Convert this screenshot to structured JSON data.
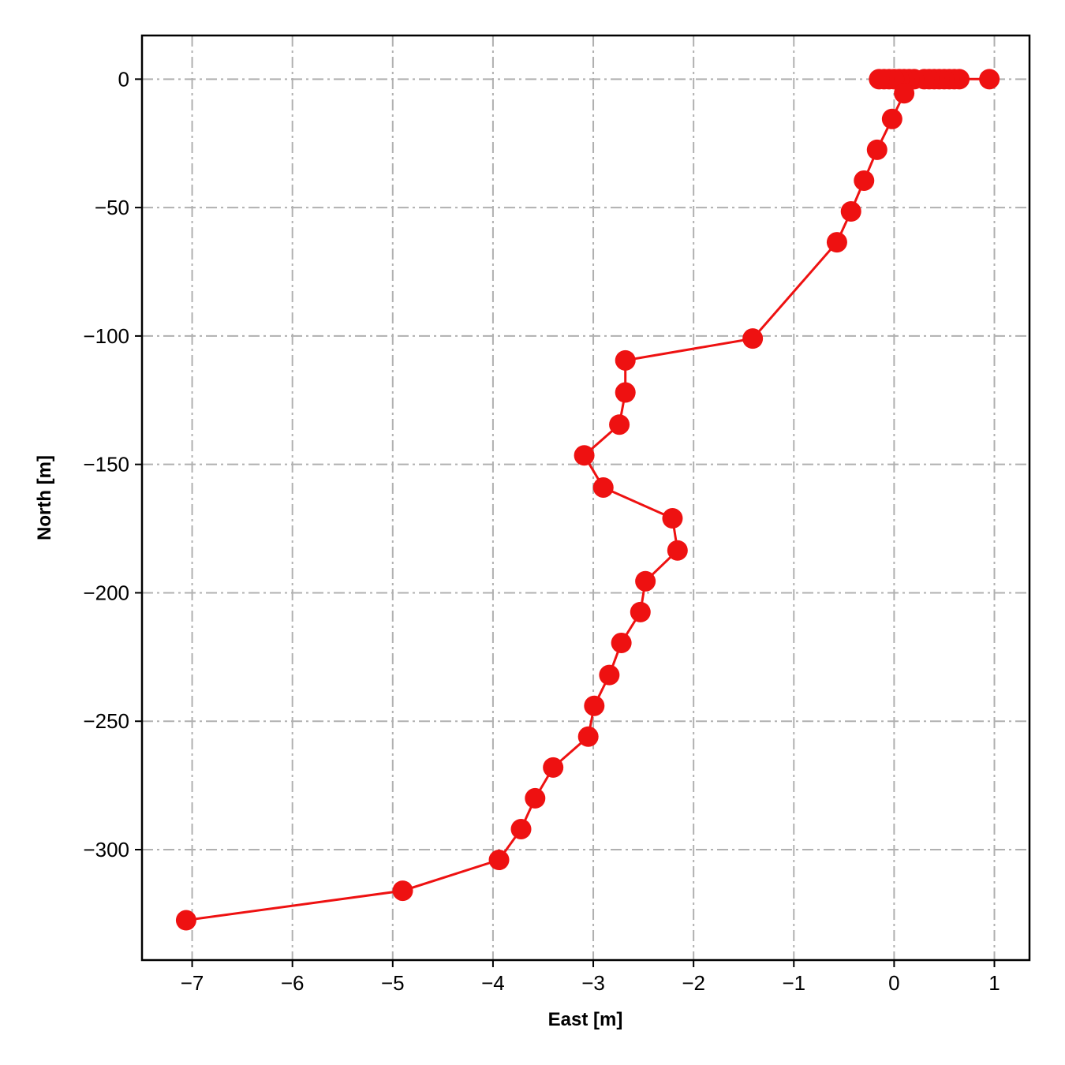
{
  "chart_data": {
    "type": "line",
    "title": "",
    "xlabel": "East [m]",
    "ylabel": "North [m]",
    "xlim": [
      -7.5,
      1.35
    ],
    "ylim": [
      -343,
      17
    ],
    "xticks": [
      -7,
      -6,
      -5,
      -4,
      -3,
      -2,
      -1,
      0,
      1
    ],
    "yticks": [
      0,
      -50,
      -100,
      -150,
      -200,
      -250,
      -300
    ],
    "grid": true,
    "color": "#ee1111",
    "series": [
      {
        "x": [
          0.95,
          0.65,
          0.6,
          0.55,
          0.5,
          0.45,
          0.4,
          0.35,
          0.3,
          0.2,
          0.15,
          0.1,
          0.05,
          0.0,
          -0.05,
          -0.1,
          -0.15,
          0.1,
          -0.02,
          -0.17,
          -0.3,
          -0.43,
          -0.57,
          -1.41,
          -2.68,
          -2.68,
          -2.74,
          -3.09,
          -2.9,
          -2.21,
          -2.16,
          -2.48,
          -2.53,
          -2.72,
          -2.84,
          -2.99,
          -3.05,
          -3.4,
          -3.58,
          -3.72,
          -3.94,
          -4.9,
          -7.06
        ],
        "y": [
          0,
          0,
          0,
          0,
          0,
          0,
          0,
          0,
          0,
          0,
          0,
          0,
          0,
          0,
          0,
          0,
          0,
          -5.5,
          -15.5,
          -27.5,
          -39.5,
          -51.5,
          -63.5,
          -101,
          -109.5,
          -122,
          -134.5,
          -146.5,
          -159,
          -171,
          -183.5,
          -195.5,
          -207.5,
          -219.5,
          -232,
          -244,
          -256,
          -268,
          -280,
          -292,
          -304,
          -316,
          -327.5
        ]
      }
    ]
  }
}
